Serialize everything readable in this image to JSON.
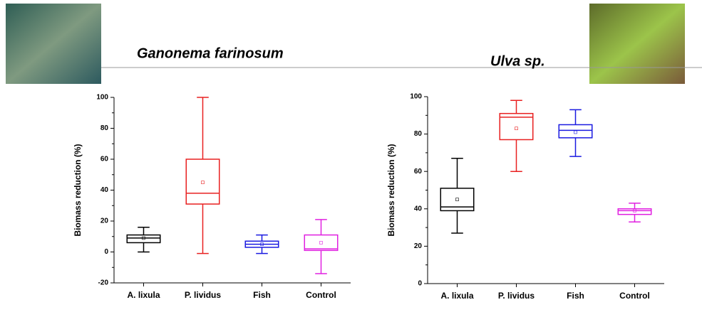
{
  "chart_data": [
    {
      "type": "box",
      "title": "Ganonema farinosum",
      "y_label": "Biomass reduction (%)",
      "categories": [
        "A. lixula",
        "P. lividus",
        "Fish",
        "Control"
      ],
      "series": [
        {
          "name": "A. lixula",
          "color": "#000000",
          "min": 0,
          "q1": 6,
          "median": 9,
          "q3": 11,
          "max": 16,
          "mean": 9
        },
        {
          "name": "P. lividus",
          "color": "#e82020",
          "min": -1,
          "q1": 31,
          "median": 38,
          "q3": 60,
          "max": 100,
          "mean": 45
        },
        {
          "name": "Fish",
          "color": "#1a1ae0",
          "min": -1,
          "q1": 3,
          "median": 5,
          "q3": 7,
          "max": 11,
          "mean": 5
        },
        {
          "name": "Control",
          "color": "#e020e0",
          "min": -14,
          "q1": 1,
          "median": 2,
          "q3": 11,
          "max": 21,
          "mean": 6
        }
      ],
      "ylim": [
        -20,
        100
      ],
      "yticks": [
        -20,
        0,
        20,
        40,
        60,
        80,
        100
      ]
    },
    {
      "type": "box",
      "title": "Ulva sp.",
      "y_label": "Biomass reduction (%)",
      "categories": [
        "A. lixula",
        "P. lividus",
        "Fish",
        "Control"
      ],
      "series": [
        {
          "name": "A. lixula",
          "color": "#000000",
          "min": 27,
          "q1": 39,
          "median": 41,
          "q3": 51,
          "max": 67,
          "mean": 45
        },
        {
          "name": "P. lividus",
          "color": "#e82020",
          "min": 60,
          "q1": 77,
          "median": 89,
          "q3": 91,
          "max": 98,
          "mean": 83
        },
        {
          "name": "Fish",
          "color": "#1a1ae0",
          "min": 68,
          "q1": 78,
          "median": 82,
          "q3": 85,
          "max": 93,
          "mean": 81
        },
        {
          "name": "Control",
          "color": "#e020e0",
          "min": 33,
          "q1": 37,
          "median": 39,
          "q3": 40,
          "max": 43,
          "mean": 39
        }
      ],
      "ylim": [
        0,
        100
      ],
      "yticks": [
        0,
        20,
        40,
        60,
        80,
        100
      ]
    }
  ]
}
